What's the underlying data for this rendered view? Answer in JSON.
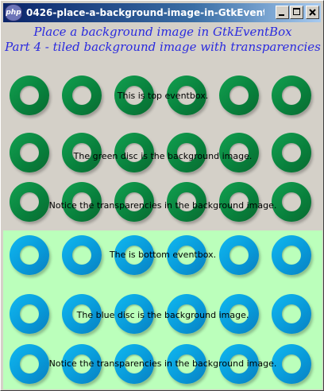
{
  "window": {
    "title": "0426-place-a-background-image-in-GtkEvent...",
    "icon_text": "php",
    "colors": {
      "titlebar_start": "#0a246a",
      "titlebar_end": "#a6caf0",
      "heading": "#2a2adf"
    }
  },
  "heading": {
    "line1": "Place a background image in GtkEventBox",
    "line2": "Part 4 - tiled background image with transparencies"
  },
  "top_box": {
    "background": "#d4d0c8",
    "tile": "green-ring-icon",
    "labels": [
      "This is top eventbox.",
      "The green disc is the background image.",
      "Notice the transparencies in the background image."
    ]
  },
  "bottom_box": {
    "background": "#bbffbb",
    "tile": "blue-ring-icon",
    "labels": [
      "The is bottom eventbox.",
      "The blue disc is the background image.",
      "Notice the transparencies in the background image."
    ]
  }
}
